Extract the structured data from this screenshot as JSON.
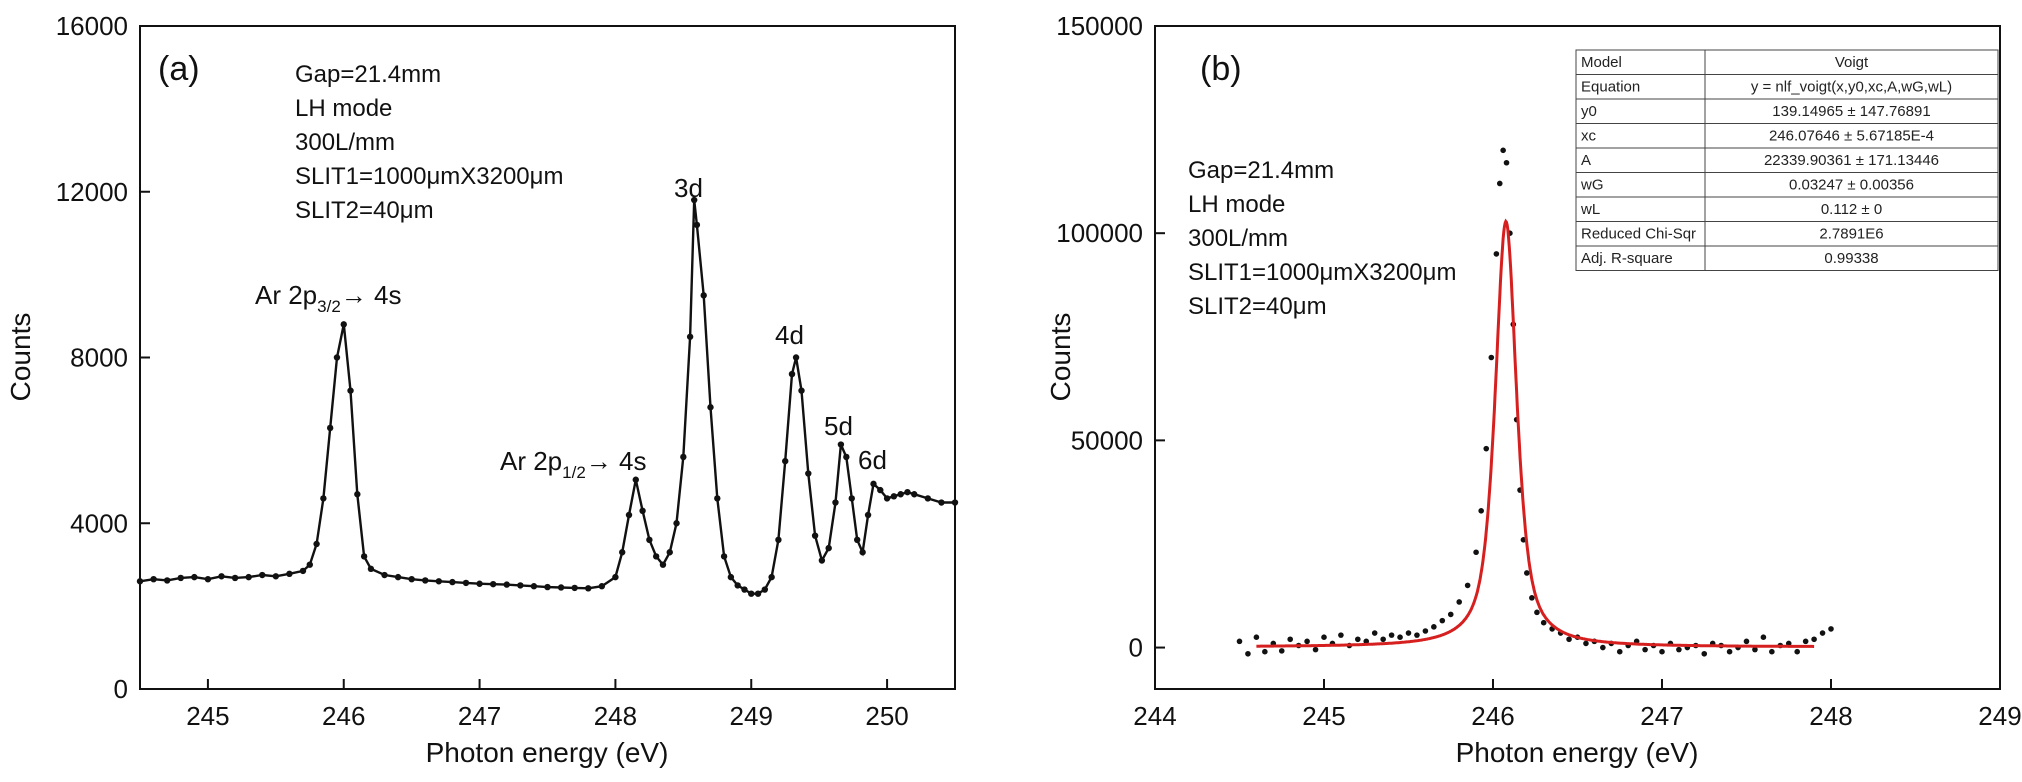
{
  "chart_data": [
    {
      "type": "line",
      "panel_label": "(a)",
      "xlabel": "Photon energy (eV)",
      "ylabel": "Counts",
      "xlim": [
        244.5,
        250.5
      ],
      "ylim": [
        0,
        16000
      ],
      "xticks": [
        245,
        246,
        247,
        248,
        249,
        250
      ],
      "yticks": [
        0,
        4000,
        8000,
        12000,
        16000
      ],
      "grid": false,
      "annotations": [
        "Gap=21.4mm",
        "LH mode",
        "300L/mm",
        "SLIT1=1000μmX3200μm",
        "SLIT2=40μm"
      ],
      "peak_labels": [
        {
          "main": "Ar 2p",
          "sub": "3/2",
          "tail": "→ 4s",
          "x": 246.0,
          "y": 8800
        },
        {
          "main": "Ar 2p",
          "sub": "1/2",
          "tail": "→ 4s",
          "x": 248.15,
          "y": 5100
        },
        {
          "text": "3d",
          "x": 248.58,
          "y": 11800
        },
        {
          "text": "4d",
          "x": 249.33,
          "y": 8000
        },
        {
          "text": "5d",
          "x": 249.66,
          "y": 5900
        },
        {
          "text": "6d",
          "x": 249.85,
          "y": 5000
        }
      ],
      "series": [
        {
          "name": "measured",
          "color": "#111111",
          "x": [
            244.5,
            244.6,
            244.7,
            244.8,
            244.9,
            245.0,
            245.1,
            245.2,
            245.3,
            245.4,
            245.5,
            245.6,
            245.7,
            245.75,
            245.8,
            245.85,
            245.9,
            245.95,
            246.0,
            246.05,
            246.1,
            246.15,
            246.2,
            246.3,
            246.4,
            246.5,
            246.6,
            246.7,
            246.8,
            246.9,
            247.0,
            247.1,
            247.2,
            247.3,
            247.4,
            247.5,
            247.6,
            247.7,
            247.8,
            247.9,
            248.0,
            248.05,
            248.1,
            248.15,
            248.2,
            248.25,
            248.3,
            248.35,
            248.4,
            248.45,
            248.5,
            248.55,
            248.58,
            248.6,
            248.65,
            248.7,
            248.75,
            248.8,
            248.85,
            248.9,
            248.95,
            249.0,
            249.05,
            249.1,
            249.15,
            249.2,
            249.25,
            249.3,
            249.33,
            249.37,
            249.42,
            249.47,
            249.52,
            249.57,
            249.62,
            249.66,
            249.7,
            249.74,
            249.78,
            249.82,
            249.86,
            249.9,
            249.95,
            250.0,
            250.05,
            250.1,
            250.15,
            250.2,
            250.3,
            250.4,
            250.5
          ],
          "y": [
            2600,
            2650,
            2620,
            2680,
            2700,
            2650,
            2720,
            2680,
            2700,
            2750,
            2720,
            2780,
            2850,
            3000,
            3500,
            4600,
            6300,
            8000,
            8800,
            7200,
            4700,
            3200,
            2900,
            2750,
            2700,
            2650,
            2620,
            2600,
            2580,
            2560,
            2540,
            2530,
            2520,
            2500,
            2480,
            2460,
            2450,
            2440,
            2430,
            2480,
            2700,
            3300,
            4200,
            5050,
            4300,
            3600,
            3200,
            3000,
            3300,
            4000,
            5600,
            8500,
            11800,
            11200,
            9500,
            6800,
            4600,
            3200,
            2700,
            2500,
            2400,
            2300,
            2300,
            2400,
            2700,
            3600,
            5500,
            7600,
            8000,
            7200,
            5200,
            3700,
            3100,
            3400,
            4500,
            5900,
            5600,
            4600,
            3600,
            3300,
            4200,
            4950,
            4800,
            4600,
            4650,
            4700,
            4750,
            4700,
            4600,
            4500,
            4500
          ]
        }
      ]
    },
    {
      "type": "scatter",
      "panel_label": "(b)",
      "xlabel": "Photon energy (eV)",
      "ylabel": "Counts",
      "xlim": [
        244,
        249
      ],
      "ylim": [
        -10000,
        150000
      ],
      "xticks": [
        244,
        245,
        246,
        247,
        248,
        249
      ],
      "yticks": [
        0,
        50000,
        100000,
        150000
      ],
      "grid": false,
      "annotations": [
        "Gap=21.4mm",
        "LH mode",
        "300L/mm",
        "SLIT1=1000μmX3200μm",
        "SLIT2=40μm"
      ],
      "fit_table": [
        [
          "Model",
          "Voigt"
        ],
        [
          "Equation",
          "y = nlf_voigt(x,y0,xc,A,wG,wL)"
        ],
        [
          "y0",
          "139.14965 ± 147.76891"
        ],
        [
          "xc",
          "246.07646 ± 5.67185E-4"
        ],
        [
          "A",
          "22339.90361 ± 171.13446"
        ],
        [
          "wG",
          "0.03247 ± 0.00356"
        ],
        [
          "wL",
          "0.112 ± 0"
        ],
        [
          "Reduced Chi-Sqr",
          "2.7891E6"
        ],
        [
          "Adj. R-square",
          "0.99338"
        ]
      ],
      "series": [
        {
          "name": "data",
          "color": "#111111",
          "kind": "points",
          "x": [
            244.5,
            244.55,
            244.6,
            244.65,
            244.7,
            244.75,
            244.8,
            244.85,
            244.9,
            244.95,
            245.0,
            245.05,
            245.1,
            245.15,
            245.2,
            245.25,
            245.3,
            245.35,
            245.4,
            245.45,
            245.5,
            245.55,
            245.6,
            245.65,
            245.7,
            245.75,
            245.8,
            245.85,
            245.9,
            245.93,
            245.96,
            245.99,
            246.02,
            246.04,
            246.06,
            246.08,
            246.1,
            246.12,
            246.14,
            246.16,
            246.18,
            246.2,
            246.23,
            246.26,
            246.3,
            246.35,
            246.4,
            246.45,
            246.5,
            246.55,
            246.6,
            246.65,
            246.7,
            246.75,
            246.8,
            246.85,
            246.9,
            246.95,
            247.0,
            247.05,
            247.1,
            247.15,
            247.2,
            247.25,
            247.3,
            247.35,
            247.4,
            247.45,
            247.5,
            247.55,
            247.6,
            247.65,
            247.7,
            247.75,
            247.8,
            247.85,
            247.9,
            247.95,
            248.0
          ],
          "y": [
            1500,
            -1500,
            2500,
            -1000,
            1000,
            -800,
            2000,
            500,
            1500,
            -500,
            2500,
            1000,
            3000,
            500,
            2000,
            1500,
            3500,
            2000,
            3000,
            2500,
            3500,
            3000,
            4000,
            5000,
            6500,
            8000,
            11000,
            15000,
            23000,
            33000,
            48000,
            70000,
            95000,
            112000,
            120000,
            117000,
            100000,
            78000,
            55000,
            38000,
            26000,
            18000,
            12000,
            8500,
            6000,
            4500,
            3500,
            2000,
            2500,
            1000,
            1500,
            0,
            1000,
            -1000,
            500,
            1500,
            -500,
            500,
            -1000,
            1000,
            -500,
            0,
            500,
            -1500,
            1000,
            500,
            -1000,
            0,
            1500,
            -500,
            2500,
            -1000,
            500,
            1000,
            -1000,
            1500,
            2000,
            3500,
            4500
          ]
        },
        {
          "name": "Voigt fit",
          "color": "#d62020",
          "kind": "voigt_fit",
          "y0": 139.14965,
          "xc": 246.07646,
          "A": 22339.90361,
          "wG": 0.03247,
          "wL": 0.112,
          "x_range": [
            244.6,
            247.9
          ]
        }
      ]
    }
  ]
}
